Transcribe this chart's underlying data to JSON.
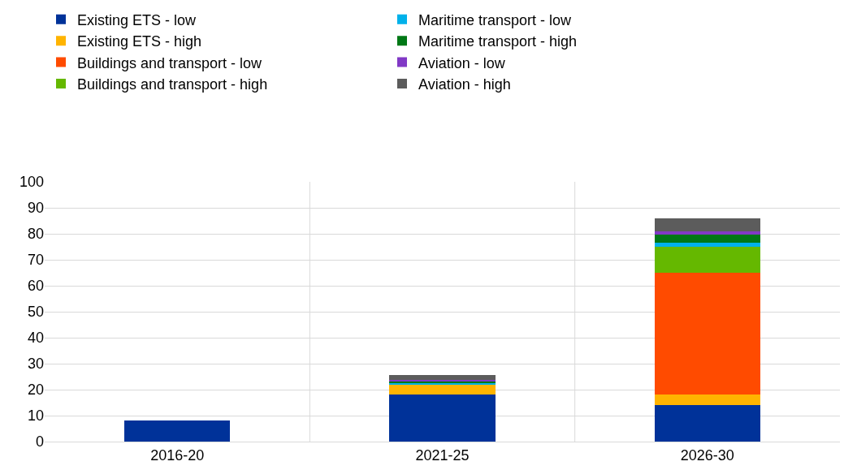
{
  "chart_data": {
    "type": "bar",
    "stacked": true,
    "categories": [
      "2016-20",
      "2021-25",
      "2026-30"
    ],
    "series": [
      {
        "name": "Existing ETS - low",
        "color": "#003299",
        "values": [
          8.2,
          18,
          14
        ]
      },
      {
        "name": "Existing ETS - high",
        "color": "#ffb400",
        "values": [
          0,
          3.9,
          4
        ]
      },
      {
        "name": "Buildings and transport - low",
        "color": "#ff4b00",
        "values": [
          0,
          0,
          47
        ]
      },
      {
        "name": "Buildings and transport - high",
        "color": "#65b800",
        "values": [
          0,
          0,
          10
        ]
      },
      {
        "name": "Maritime transport - low",
        "color": "#00b1ea",
        "values": [
          0,
          0.5,
          1.6
        ]
      },
      {
        "name": "Maritime transport - high",
        "color": "#007816",
        "values": [
          0,
          1,
          3.2
        ]
      },
      {
        "name": "Aviation - low",
        "color": "#8139c6",
        "values": [
          0,
          0.4,
          1
        ]
      },
      {
        "name": "Aviation - high",
        "color": "#5c5c5c",
        "values": [
          0,
          1.8,
          5.1
        ]
      }
    ],
    "ylim": [
      0,
      100
    ],
    "yticks": [
      0,
      10,
      20,
      30,
      40,
      50,
      60,
      70,
      80,
      90,
      100
    ],
    "grid": true,
    "legend": "top left"
  }
}
